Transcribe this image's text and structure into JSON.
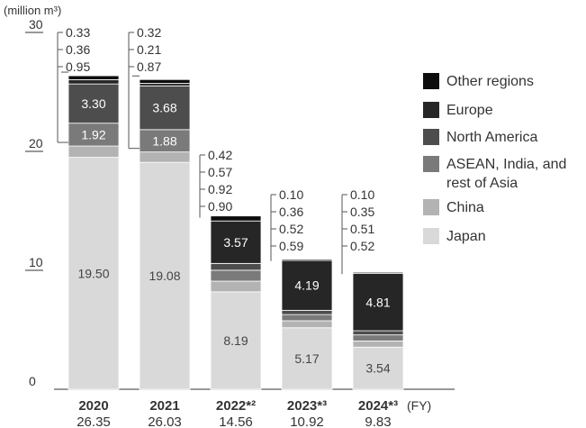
{
  "chart_data": {
    "type": "bar",
    "stacked": true,
    "title": "",
    "unit_label": "(million m³)",
    "x_axis_suffix": "(FY)",
    "ylim": [
      0,
      30
    ],
    "yticks": [
      0,
      10,
      20,
      30
    ],
    "categories": [
      "2020",
      "2021",
      "2022*²",
      "2023*³",
      "2024*³"
    ],
    "totals": [
      "26.35",
      "26.03",
      "14.56",
      "10.92",
      "9.83"
    ],
    "series": [
      {
        "name": "Japan",
        "color": "#d9d9d9",
        "values": [
          19.5,
          19.08,
          8.19,
          5.17,
          3.54
        ]
      },
      {
        "name": "China",
        "color": "#b3b3b3",
        "values": [
          0.95,
          0.87,
          0.9,
          0.59,
          0.52
        ]
      },
      {
        "name": "ASEAN, India, and rest of Asia",
        "color": "#7a7a7a",
        "values": [
          1.92,
          1.88,
          0.92,
          0.52,
          0.51
        ]
      },
      {
        "name": "North America",
        "color": "#4d4d4d",
        "values": [
          3.3,
          3.68,
          0.57,
          0.36,
          0.35
        ]
      },
      {
        "name": "Europe",
        "color": "#262626",
        "values": [
          0.36,
          0.21,
          3.57,
          4.19,
          4.81
        ]
      },
      {
        "name": "Other regions",
        "color": "#0d0d0d",
        "values": [
          0.33,
          0.32,
          0.42,
          0.1,
          0.1
        ]
      }
    ],
    "inside_labels": [
      [
        {
          "series": 0,
          "text": "19.50"
        },
        {
          "series": 2,
          "text": "1.92"
        },
        {
          "series": 3,
          "text": "3.30"
        }
      ],
      [
        {
          "series": 0,
          "text": "19.08"
        },
        {
          "series": 2,
          "text": "1.88"
        },
        {
          "series": 3,
          "text": "3.68"
        }
      ],
      [
        {
          "series": 0,
          "text": "8.19"
        },
        {
          "series": 4,
          "text": "3.57"
        }
      ],
      [
        {
          "series": 0,
          "text": "5.17"
        },
        {
          "series": 4,
          "text": "4.19"
        }
      ],
      [
        {
          "series": 0,
          "text": "3.54"
        },
        {
          "series": 4,
          "text": "4.81"
        }
      ]
    ],
    "callout_labels": [
      [
        "0.33",
        "0.36",
        "0.95"
      ],
      [
        "0.32",
        "0.21",
        "0.87"
      ],
      [
        "0.42",
        "0.57",
        "0.92",
        "0.90"
      ],
      [
        "0.10",
        "0.36",
        "0.52",
        "0.59"
      ],
      [
        "0.10",
        "0.35",
        "0.51",
        "0.52"
      ]
    ],
    "legend": {
      "position": "right",
      "items": [
        {
          "label": "Other regions",
          "color": "#0d0d0d"
        },
        {
          "label": "Europe",
          "color": "#262626"
        },
        {
          "label": "North America",
          "color": "#4d4d4d"
        },
        {
          "label": "ASEAN, India, and rest of Asia",
          "color": "#7a7a7a"
        },
        {
          "label": "China",
          "color": "#b3b3b3"
        },
        {
          "label": "Japan",
          "color": "#d9d9d9"
        }
      ]
    }
  }
}
